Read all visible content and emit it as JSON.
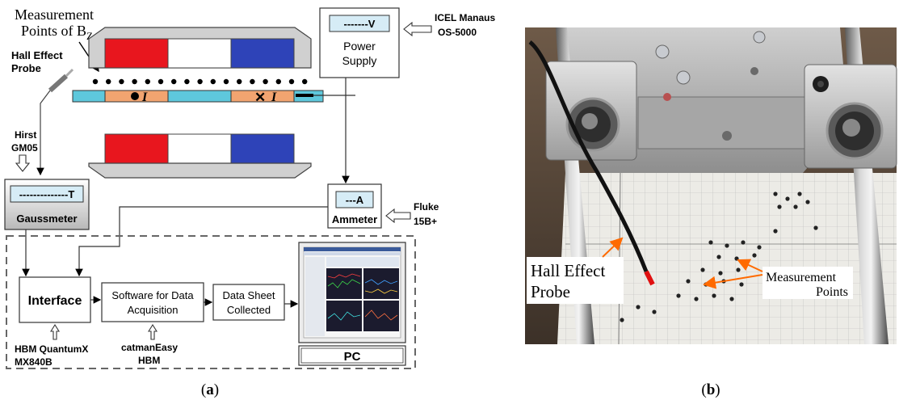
{
  "panel_a": {
    "measurement_label_line1": "Measurement",
    "measurement_label_line2": "Points of B",
    "measurement_label_sub": "Z",
    "hall_label_line1": "Hall Effect",
    "hall_label_line2": "Probe",
    "current_symbol": "I",
    "power_supply": {
      "display": "-------V",
      "line1": "Power",
      "line2": "Supply",
      "model_line1": "ICEL Manaus",
      "model_line2": "OS-5000"
    },
    "gaussmeter": {
      "brand_line1": "Hirst",
      "brand_line2": "GM05",
      "display": "--------------T",
      "label": "Gaussmeter"
    },
    "ammeter": {
      "display": "---A",
      "label": "Ammeter",
      "brand_line1": "Fluke",
      "brand_line2": "15B+"
    },
    "interface": {
      "label": "Interface",
      "vendor_line1": "HBM QuantumX",
      "vendor_line2": "MX840B"
    },
    "software": {
      "line1": "Software for Data",
      "line2": "Acquisition",
      "vendor_line1": "catmanEasy",
      "vendor_line2": "HBM"
    },
    "datasheet": {
      "line1": "Data Sheet",
      "line2": "Collected"
    },
    "pc": {
      "label": "PC"
    }
  },
  "panel_b": {
    "hall_line1": "Hall Effect",
    "hall_line2": "Probe",
    "points_line1": "Measurement",
    "points_line2": "Points"
  },
  "captions": {
    "a": "a",
    "b": "b"
  },
  "colors": {
    "magnet_red": "#e8161e",
    "magnet_blue": "#2e43b8",
    "magnet_gray": "#d0d0d0",
    "coil_cyan": "#5ec8dc",
    "coil_orange": "#f2a470",
    "display_fill": "#d6ecf6",
    "arrow_orange": "#ff6a00"
  }
}
